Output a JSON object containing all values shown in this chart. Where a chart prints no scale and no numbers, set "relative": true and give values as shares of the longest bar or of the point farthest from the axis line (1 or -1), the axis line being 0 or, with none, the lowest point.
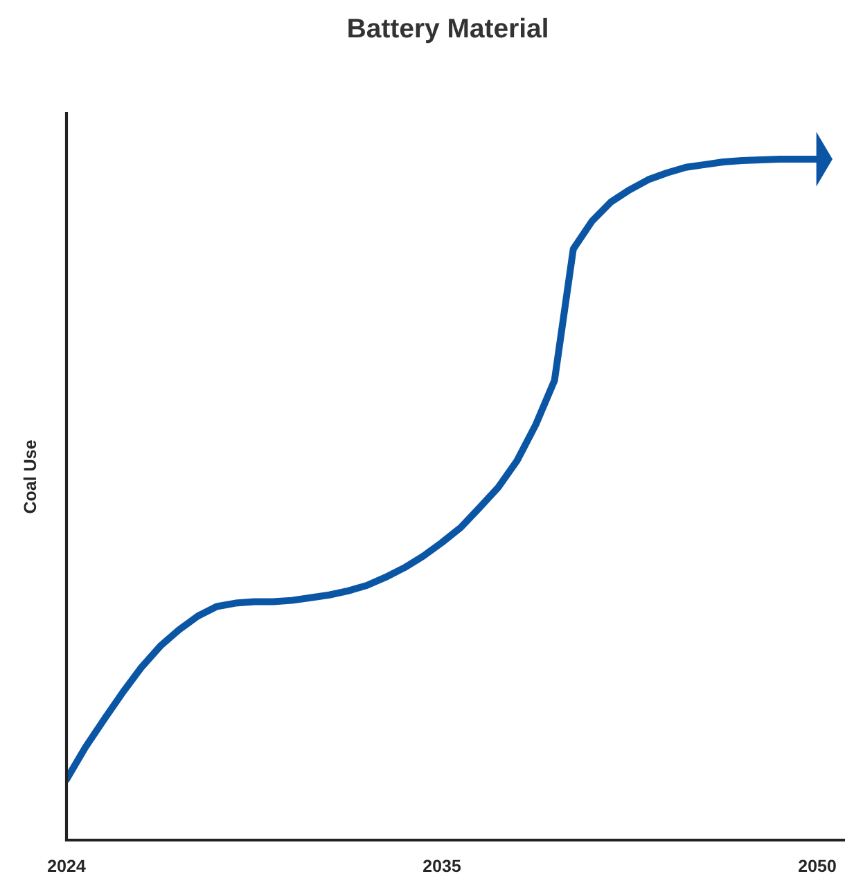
{
  "chart_data": {
    "type": "line",
    "title": "Battery Material",
    "ylabel": "Coal Use",
    "relative": true,
    "grid": false,
    "legend": false,
    "categories": [
      "2024",
      null,
      null,
      null,
      null,
      null,
      null,
      null,
      null,
      null,
      null,
      null,
      null,
      null,
      null,
      null,
      null,
      null,
      null,
      null,
      "2035",
      null,
      null,
      null,
      null,
      null,
      null,
      null,
      null,
      null,
      null,
      null,
      null,
      null,
      null,
      null,
      null,
      null,
      null,
      null,
      "2050"
    ],
    "series": [
      {
        "color": "#0b56a4",
        "values": [
          0.089,
          0.136,
          0.177,
          0.217,
          0.254,
          0.285,
          0.309,
          0.329,
          0.343,
          0.348,
          0.35,
          0.35,
          0.352,
          0.356,
          0.36,
          0.366,
          0.374,
          0.386,
          0.4,
          0.417,
          0.437,
          0.459,
          0.488,
          0.518,
          0.557,
          0.61,
          0.675,
          0.868,
          0.909,
          0.937,
          0.955,
          0.97,
          0.98,
          0.988,
          0.992,
          0.996,
          0.998,
          0.999,
          1,
          1,
          1
        ]
      }
    ]
  }
}
